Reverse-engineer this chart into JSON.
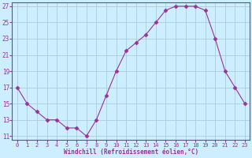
{
  "x": [
    0,
    1,
    2,
    3,
    4,
    5,
    6,
    7,
    8,
    9,
    10,
    11,
    12,
    13,
    14,
    15,
    16,
    17,
    18,
    19,
    20,
    21,
    22,
    23
  ],
  "y": [
    17,
    15,
    14,
    13,
    13,
    12,
    12,
    11,
    13,
    16,
    19,
    21.5,
    22.5,
    23.5,
    25,
    26.5,
    27,
    27,
    27,
    26.5,
    23,
    19,
    17,
    15
  ],
  "line_color": "#993399",
  "marker": "D",
  "marker_size": 2.5,
  "bg_color": "#cceeff",
  "grid_color": "#aaccdd",
  "xlabel": "Windchill (Refroidissement éolien,°C)",
  "xlabel_color": "#993399",
  "tick_color": "#993399",
  "ylim": [
    10.5,
    27.5
  ],
  "yticks": [
    11,
    13,
    15,
    17,
    19,
    21,
    23,
    25,
    27
  ],
  "xticks": [
    0,
    1,
    2,
    3,
    4,
    5,
    6,
    7,
    8,
    9,
    10,
    11,
    12,
    13,
    14,
    15,
    16,
    17,
    18,
    19,
    20,
    21,
    22,
    23
  ],
  "xlim": [
    -0.5,
    23.5
  ]
}
